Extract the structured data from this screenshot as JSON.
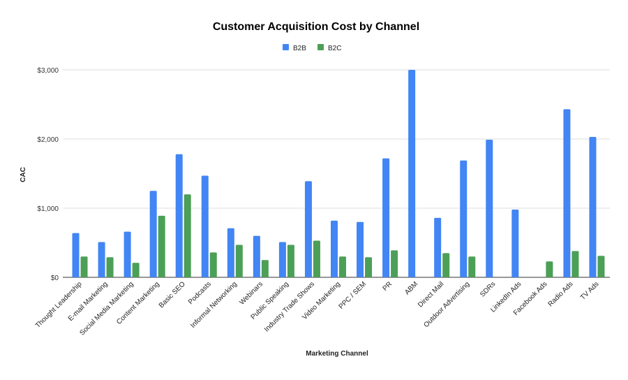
{
  "chart_data": {
    "type": "bar",
    "title": "Customer Acquisition Cost by Channel",
    "xlabel": "Marketing Channel",
    "ylabel": "CAC",
    "ylim": [
      0,
      3000
    ],
    "yticks": [
      0,
      1000,
      2000,
      3000
    ],
    "ytick_labels": [
      "$0",
      "$1,000",
      "$2,000",
      "$3,000"
    ],
    "grid": true,
    "legend_position": "top",
    "categories": [
      "Thought Leadership",
      "E-mail Marketing",
      "Social Media Marketing",
      "Content Marketing",
      "Basic SEO",
      "Podcasts",
      "Informal Networking",
      "Webinars",
      "Public Speaking",
      "Industry Trade Shows",
      "Video Marketing",
      "PPC / SEM",
      "PR",
      "ABM",
      "Direct Mail",
      "Outdoor Advertising",
      "SDRs",
      "LinkedIn Ads",
      "Facebook Ads",
      "Radio Ads",
      "TV Ads"
    ],
    "series": [
      {
        "name": "B2B",
        "color": "#4285f4",
        "values": [
          640,
          510,
          660,
          1250,
          1780,
          1470,
          710,
          600,
          510,
          1390,
          820,
          800,
          1720,
          3000,
          860,
          1690,
          1990,
          980,
          null,
          2430,
          2030
        ]
      },
      {
        "name": "B2C",
        "color": "#4c9f57",
        "values": [
          300,
          290,
          210,
          890,
          1200,
          360,
          470,
          250,
          470,
          530,
          300,
          290,
          390,
          null,
          350,
          300,
          null,
          null,
          230,
          380,
          310
        ]
      }
    ]
  }
}
